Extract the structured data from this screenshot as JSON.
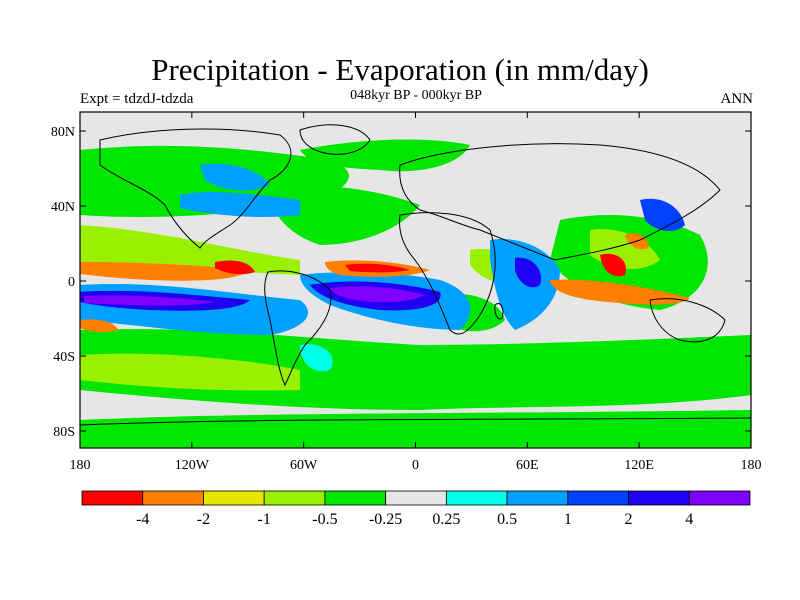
{
  "title": "Precipitation - Evaporation (in mm/day)",
  "experiment": "Expt = tdzdJ-tdzda",
  "period": "048kyr BP - 000kyr BP",
  "season": "ANN",
  "lat_ticks": [
    "80N",
    "40N",
    "0",
    "40S",
    "80S"
  ],
  "lon_ticks": [
    "180",
    "120W",
    "60W",
    "0",
    "60E",
    "120E",
    "180"
  ],
  "colorbar": {
    "colors": [
      "#ff0000",
      "#ff8000",
      "#e6e600",
      "#99f000",
      "#00e600",
      "#e6e6e6",
      "#00ffe6",
      "#00a0ff",
      "#0040ff",
      "#2000f0",
      "#8000ff"
    ],
    "labels": [
      "-4",
      "-2",
      "-1",
      "-0.5",
      "-0.25",
      "0.25",
      "0.5",
      "1",
      "2",
      "4"
    ]
  },
  "colors": {
    "land": "#e6e6e6",
    "frame": "#000000"
  }
}
